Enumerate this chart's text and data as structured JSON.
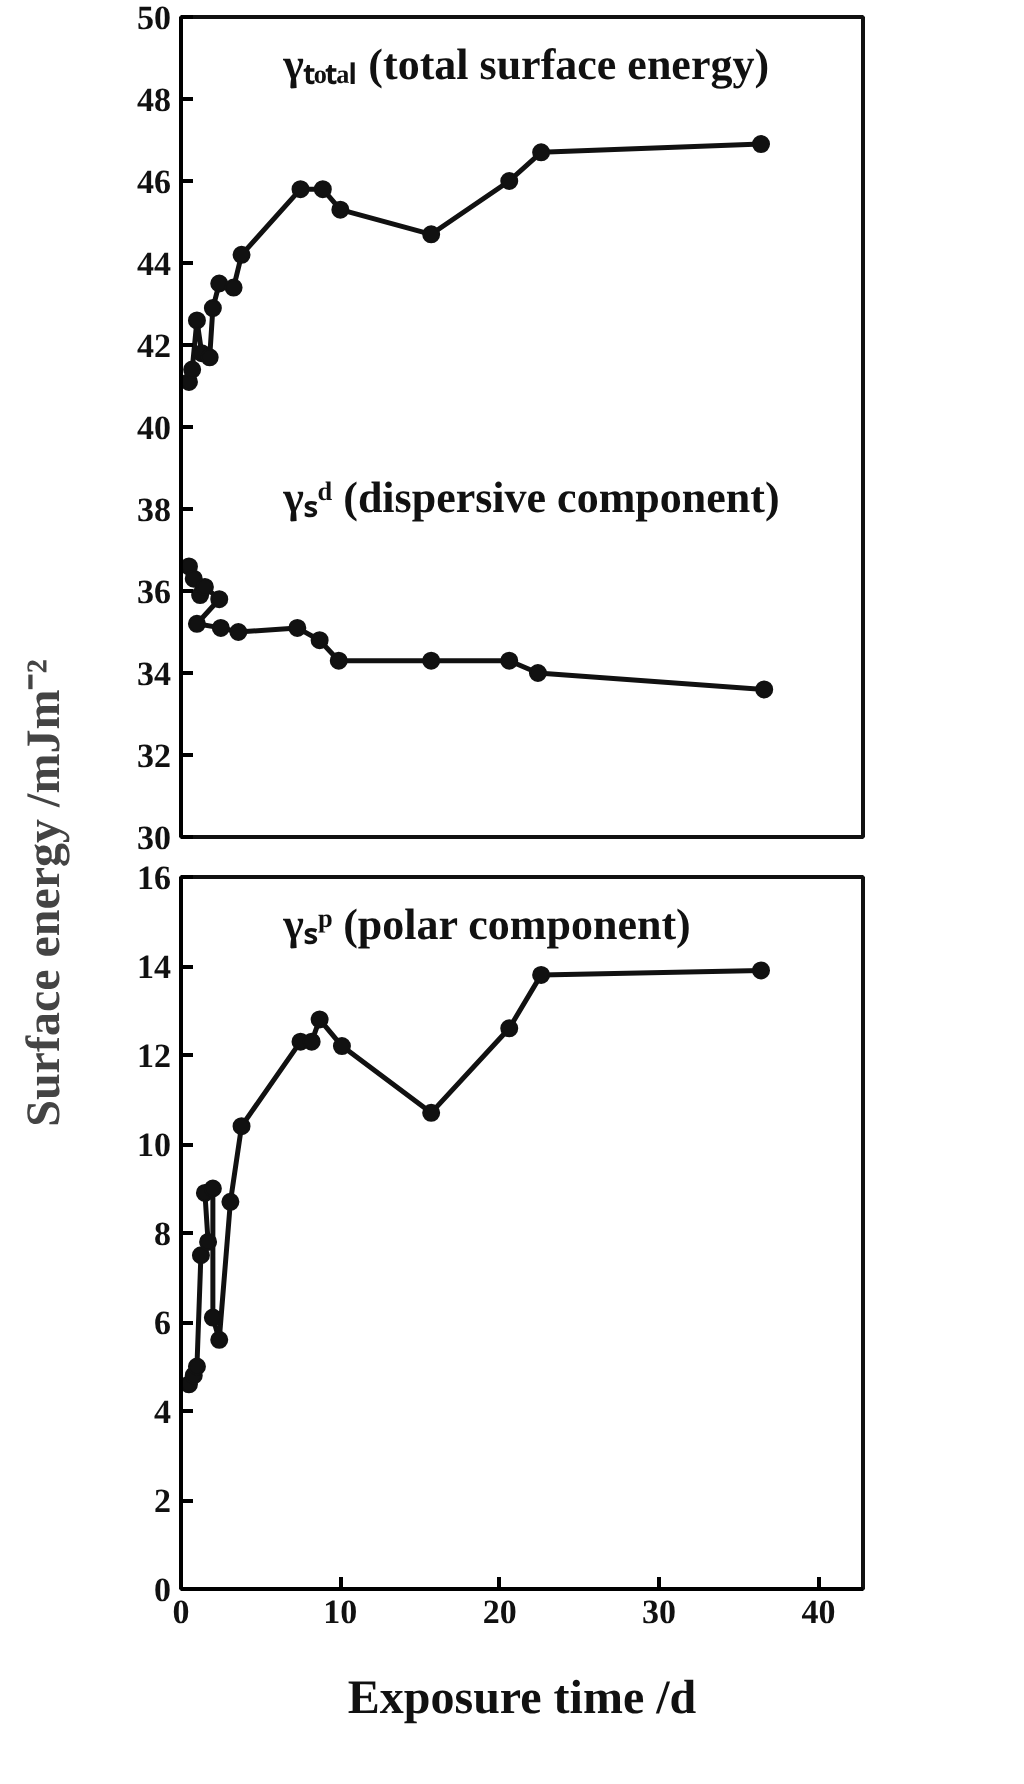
{
  "chart_data": [
    {
      "type": "line",
      "ylabel": "Surface energy /mJm⁻²",
      "xlim": [
        0,
        42.8
      ],
      "ylim": [
        30,
        50
      ],
      "yticks": [
        30,
        32,
        34,
        36,
        38,
        40,
        42,
        44,
        46,
        48,
        50
      ],
      "tick_labels": "y",
      "grid": false,
      "marker": "circle",
      "line_style": "solid",
      "series": [
        {
          "name": "γₜₒₜₐₗ (total surface energy)",
          "color": "#111111",
          "x": [
            0.5,
            0.7,
            1.0,
            1.3,
            1.8,
            2.0,
            2.4,
            3.3,
            3.8,
            7.5,
            8.9,
            10.0,
            15.7,
            20.6,
            22.6,
            36.4
          ],
          "values": [
            41.1,
            41.4,
            42.6,
            41.8,
            41.7,
            42.9,
            43.5,
            43.4,
            44.2,
            45.8,
            45.8,
            45.3,
            44.7,
            46.0,
            46.7,
            46.9
          ]
        },
        {
          "name": "γₛᵈ (dispersive component)",
          "color": "#111111",
          "x": [
            0.5,
            0.8,
            1.2,
            1.5,
            2.4,
            1.0,
            2.5,
            3.6,
            7.3,
            8.7,
            9.9,
            15.7,
            20.6,
            22.4,
            36.6
          ],
          "values": [
            36.6,
            36.3,
            35.9,
            36.1,
            35.8,
            35.2,
            35.1,
            35.0,
            35.1,
            34.8,
            34.3,
            34.3,
            34.3,
            34.0,
            33.6
          ]
        }
      ]
    },
    {
      "type": "line",
      "xlabel": "Exposure time /d",
      "xlim": [
        0,
        42.8
      ],
      "ylim": [
        0,
        16
      ],
      "xticks": [
        0,
        10,
        20,
        30,
        40
      ],
      "yticks": [
        0,
        2,
        4,
        6,
        8,
        10,
        12,
        14,
        16
      ],
      "grid": false,
      "marker": "circle",
      "line_style": "solid",
      "series": [
        {
          "name": "γₛᵖ (polar component)",
          "color": "#111111",
          "x": [
            0.5,
            0.8,
            1.0,
            1.25,
            1.7,
            1.5,
            2.0,
            2.0,
            2.4,
            3.1,
            3.8,
            7.5,
            8.2,
            8.7,
            10.1,
            15.7,
            20.6,
            22.6,
            36.4
          ],
          "values": [
            4.6,
            4.8,
            5.0,
            7.5,
            7.8,
            8.9,
            9.0,
            6.1,
            5.6,
            8.7,
            10.4,
            12.3,
            12.3,
            12.8,
            12.2,
            10.7,
            12.6,
            13.8,
            13.9
          ]
        }
      ]
    }
  ]
}
